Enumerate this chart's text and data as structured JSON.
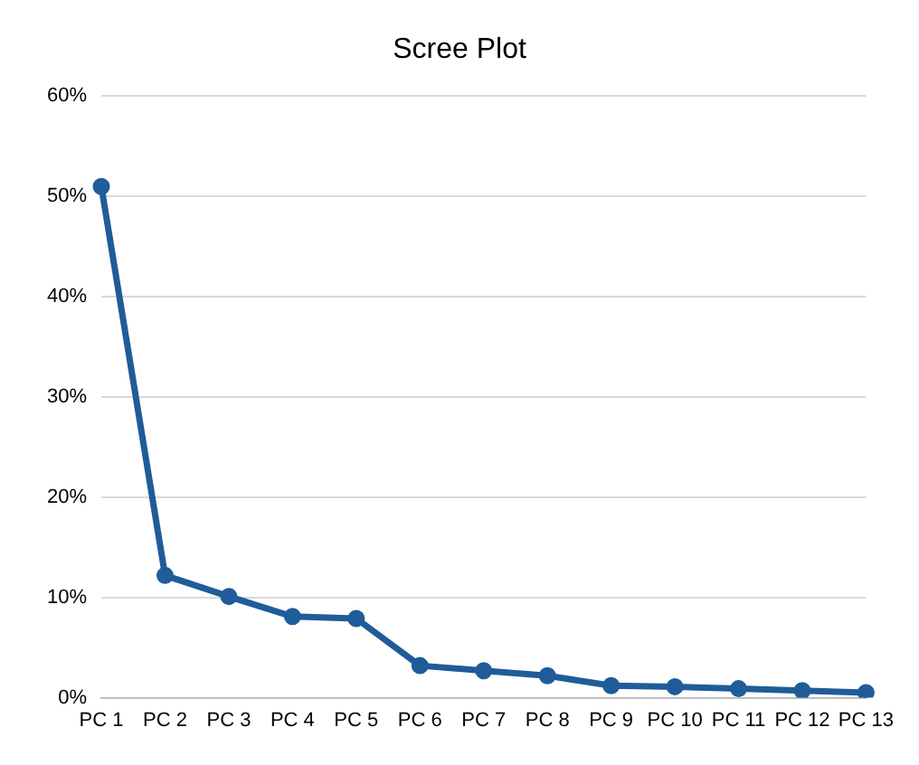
{
  "chart_data": {
    "type": "line",
    "title": "Scree Plot",
    "categories": [
      "PC 1",
      "PC 2",
      "PC 3",
      "PC 4",
      "PC 5",
      "PC 6",
      "PC 7",
      "PC 8",
      "PC 9",
      "PC 10",
      "PC 11",
      "PC 12",
      "PC 13"
    ],
    "series": [
      {
        "color": "#1f5c99",
        "values": [
          51,
          12.2,
          10.1,
          8.1,
          7.9,
          3.2,
          2.7,
          2.2,
          1.2,
          1.1,
          0.9,
          0.7,
          0.5
        ]
      }
    ],
    "ylim": [
      0,
      60
    ],
    "yticks": [
      {
        "value": 0,
        "label": "0%"
      },
      {
        "value": 10,
        "label": "10%"
      },
      {
        "value": 20,
        "label": "20%"
      },
      {
        "value": 30,
        "label": "30%"
      },
      {
        "value": 40,
        "label": "40%"
      },
      {
        "value": 50,
        "label": "50%"
      },
      {
        "value": 60,
        "label": "60%"
      }
    ],
    "grid": "y",
    "legend": false,
    "marker": "circle",
    "line_style": "solid"
  }
}
